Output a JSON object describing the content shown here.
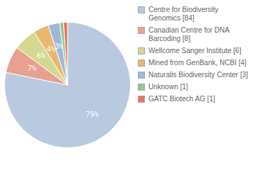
{
  "chart_data": {
    "type": "pie",
    "categories": [
      "Centre for Biodiversity\nGenomics [84]",
      "Canadian Centre for DNA\nBarcoding [8]",
      "Wellcome Sanger Institute [6]",
      "Mined from GenBank, NCBI [4]",
      "Naturalis Biodiversity Center [3]",
      "Unknown [1]",
      "GATC Biotech AG [1]"
    ],
    "values": [
      79,
      7,
      6,
      4,
      3,
      1,
      1
    ],
    "value_labels": [
      "79%",
      "7%",
      "6%",
      "4%",
      "3%",
      null,
      null
    ],
    "data_labels": true,
    "colors": [
      "#b8c9e0",
      "#e8a090",
      "#d4d890",
      "#e8b870",
      "#a0b8d8",
      "#90c890",
      "#e87060"
    ],
    "legend": "right"
  }
}
